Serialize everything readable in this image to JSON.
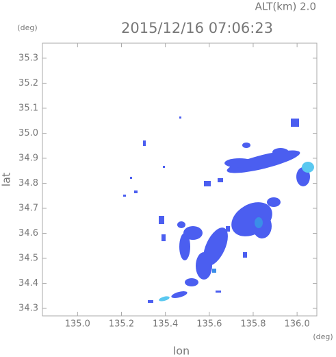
{
  "chart_data": {
    "type": "radar-map",
    "title": "2015/12/16 07:06:23",
    "altitude_label": "ALT(km) 2.0",
    "y_unit": "(deg)",
    "x_unit": "(deg)",
    "xlabel": "lon",
    "ylabel": "lat",
    "xlim": [
      134.84,
      136.09
    ],
    "xticks": [
      {
        "value": 135,
        "label": "135.0"
      },
      135.2,
      135.4,
      135.6,
      135.8,
      {
        "value": 136,
        "label": "136.0"
      }
    ],
    "ylim": [
      34.27,
      35.36
    ],
    "yticks": [
      34.3,
      34.4,
      34.5,
      34.6,
      34.7,
      34.8,
      34.9,
      {
        "value": 35,
        "label": "35.0"
      },
      35.1,
      35.2,
      35.3
    ]
  }
}
